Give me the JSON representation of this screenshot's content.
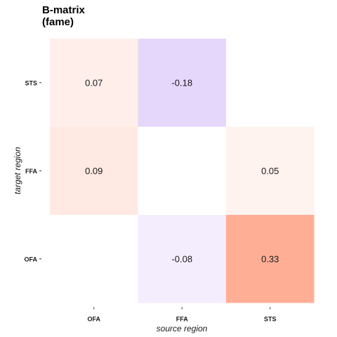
{
  "chart_data": {
    "type": "heatmap",
    "title_line1": "B-matrix",
    "title_line2": "(fame)",
    "xlabel": "source region",
    "ylabel": "target region",
    "x_categories": [
      "OFA",
      "FFA",
      "STS"
    ],
    "y_categories": [
      "OFA",
      "FFA",
      "STS"
    ],
    "cells": [
      {
        "source": "OFA",
        "target": "STS",
        "value": 0.07,
        "label": "0.07"
      },
      {
        "source": "FFA",
        "target": "STS",
        "value": -0.18,
        "label": "-0.18"
      },
      {
        "source": "OFA",
        "target": "FFA",
        "value": 0.09,
        "label": "0.09"
      },
      {
        "source": "STS",
        "target": "FFA",
        "value": 0.05,
        "label": "0.05"
      },
      {
        "source": "FFA",
        "target": "OFA",
        "value": -0.08,
        "label": "-0.08"
      },
      {
        "source": "STS",
        "target": "OFA",
        "value": 0.33,
        "label": "0.33"
      }
    ],
    "color_scale": {
      "negative": "#8d4cf0",
      "zero": "#ffffff",
      "positive": "#ff3a00",
      "limit": 0.8
    },
    "grid": false
  }
}
